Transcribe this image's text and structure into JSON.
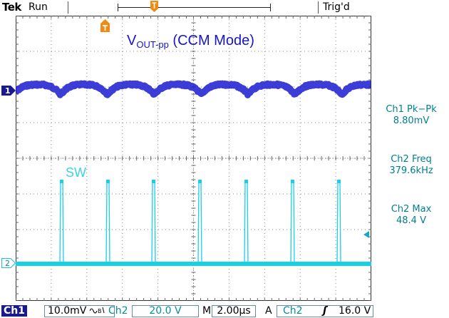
{
  "header": {
    "brand": "Tek",
    "acq_state": "Run",
    "trigger_status": "Trig'd",
    "trigger_position_icon": "trigger-position-icon",
    "trigger_marker_icon": "trigger-marker-icon"
  },
  "annotations": {
    "vout_main": "V",
    "vout_sub": "OUT-pp",
    "vout_mode": " (CCM Mode)",
    "sw_label": "SW"
  },
  "channels": {
    "ch1_ref": "1",
    "ch2_ref": "2",
    "ch1_color": "#1a1ad0",
    "ch2_color": "#18d0e8"
  },
  "measurements": [
    {
      "label": "Ch1 Pk−Pk",
      "value": "8.80mV"
    },
    {
      "label": "Ch2 Freq",
      "value": "379.6kHz"
    },
    {
      "label": "Ch2 Max",
      "value": "48.4 V"
    }
  ],
  "statusbar": {
    "ch1_badge": "Ch1",
    "ch1_scale": "10.0mV",
    "ch1_coupling_icon": "ac-bw-coupling-icon",
    "ch2_label": "Ch2",
    "ch2_scale": "20.0 V",
    "timebase_prefix": "M",
    "timebase": "2.00µs",
    "trigger_mode": "A",
    "trigger_source": "Ch2",
    "trigger_slope": "ʃ",
    "trigger_level": "16.0 V"
  }
}
